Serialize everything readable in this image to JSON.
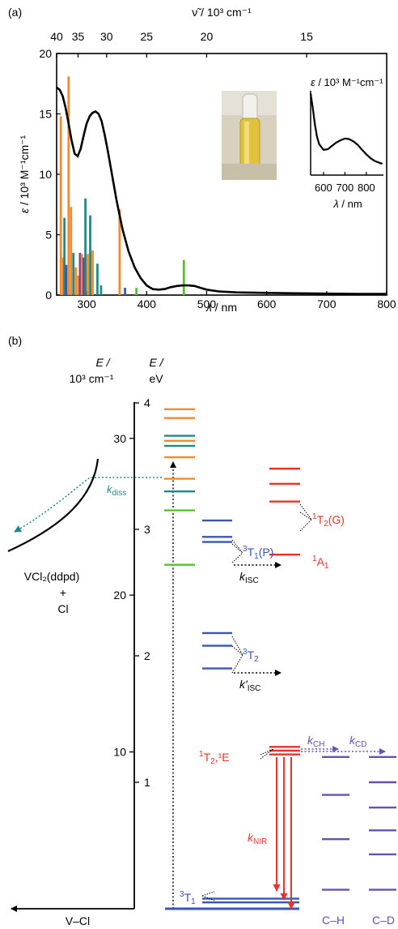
{
  "colors": {
    "axis": "#000000",
    "orange": "#f28a2e",
    "teal": "#1f8a8a",
    "green": "#58c02a",
    "blue": "#3a55b4",
    "red": "#e8322a",
    "purple": "#6a4fb5",
    "violet": "#7a3fa0",
    "photo_bg": "#d9d2c2",
    "vial": "#e3c840"
  },
  "chart_data": [
    {
      "type": "line",
      "panel": "(a)",
      "xlabel_var": "λ",
      "xlabel_unit": " / nm",
      "x_ticks": [
        "300",
        "400",
        "500",
        "600",
        "700",
        "800"
      ],
      "xlim": [
        250,
        800
      ],
      "ylabel_var": "ε",
      "ylabel_unit": "  / 10³ M⁻¹cm⁻¹",
      "y_ticks": [
        "0",
        "5",
        "10",
        "15",
        "20"
      ],
      "ylim": [
        0,
        20
      ],
      "top_axis_label": "ν̃ / 10³ cm⁻¹",
      "top_ticks": [
        "40",
        "35",
        "30",
        "25",
        "20",
        "15"
      ],
      "top_tick_wavenumbers": [
        40,
        35,
        30,
        25,
        20,
        15
      ],
      "absorption_series": {
        "x": [
          250,
          255,
          260,
          265,
          270,
          275,
          280,
          285,
          290,
          295,
          300,
          305,
          310,
          315,
          320,
          325,
          330,
          335,
          340,
          345,
          350,
          360,
          370,
          380,
          390,
          400,
          410,
          420,
          430,
          440,
          450,
          460,
          470,
          480,
          490,
          500,
          520,
          550,
          600,
          650,
          700,
          750,
          800
        ],
        "y": [
          17.2,
          17.0,
          16.5,
          15.5,
          14.2,
          12.8,
          11.7,
          11.5,
          12.1,
          13.2,
          14.2,
          14.8,
          15.1,
          15.2,
          15.0,
          14.4,
          13.3,
          12.0,
          10.6,
          9.2,
          7.8,
          5.4,
          3.6,
          2.3,
          1.4,
          0.8,
          0.5,
          0.45,
          0.5,
          0.65,
          0.75,
          0.8,
          0.8,
          0.75,
          0.6,
          0.45,
          0.3,
          0.22,
          0.18,
          0.15,
          0.12,
          0.1,
          0.1
        ]
      },
      "calculated_transitions": [
        {
          "x": 257,
          "y": 14.8,
          "color": "orange"
        },
        {
          "x": 261,
          "y": 3.1,
          "color": "orange"
        },
        {
          "x": 263,
          "y": 6.4,
          "color": "teal"
        },
        {
          "x": 266,
          "y": 2.5,
          "color": "blue"
        },
        {
          "x": 270,
          "y": 18.1,
          "color": "orange"
        },
        {
          "x": 274,
          "y": 7.3,
          "color": "orange"
        },
        {
          "x": 278,
          "y": 3.5,
          "color": "teal"
        },
        {
          "x": 282,
          "y": 2.3,
          "color": "orange"
        },
        {
          "x": 286,
          "y": 1.6,
          "color": "orange"
        },
        {
          "x": 289,
          "y": 3.5,
          "color": "violet"
        },
        {
          "x": 292,
          "y": 3.4,
          "color": "orange"
        },
        {
          "x": 295,
          "y": 3.1,
          "color": "violet"
        },
        {
          "x": 298,
          "y": 8.0,
          "color": "teal"
        },
        {
          "x": 302,
          "y": 3.4,
          "color": "orange"
        },
        {
          "x": 306,
          "y": 6.6,
          "color": "teal"
        },
        {
          "x": 310,
          "y": 3.7,
          "color": "orange"
        },
        {
          "x": 318,
          "y": 2.6,
          "color": "teal"
        },
        {
          "x": 324,
          "y": 0.8,
          "color": "teal"
        },
        {
          "x": 355,
          "y": 7.1,
          "color": "orange"
        },
        {
          "x": 364,
          "y": 0.6,
          "color": "blue"
        },
        {
          "x": 383,
          "y": 0.6,
          "color": "green"
        },
        {
          "x": 462,
          "y": 2.9,
          "color": "green"
        }
      ],
      "inset": {
        "ylabel_var": "ε",
        "ylabel_unit": "  / 10³ M⁻¹cm⁻¹",
        "xlabel_var": "λ",
        "xlabel_unit": " / nm",
        "x_ticks": [
          "600",
          "700",
          "800"
        ],
        "xlim": [
          540,
          880
        ],
        "ylim": [
          0,
          1.5
        ],
        "series": {
          "x": [
            540,
            550,
            560,
            570,
            580,
            600,
            620,
            640,
            660,
            680,
            700,
            720,
            740,
            760,
            780,
            800,
            820,
            840,
            860,
            875
          ],
          "y": [
            1.45,
            1.2,
            0.9,
            0.68,
            0.55,
            0.45,
            0.46,
            0.52,
            0.58,
            0.62,
            0.65,
            0.64,
            0.6,
            0.54,
            0.45,
            0.37,
            0.3,
            0.25,
            0.22,
            0.2
          ]
        }
      }
    },
    {
      "type": "energy-diagram",
      "panel": "(b)",
      "left_axis_label_line1": "E /",
      "left_axis_label_line2": "10³ cm⁻¹",
      "right_axis_label_line1": "E /",
      "right_axis_label_line2": "eV",
      "cm_ticks": [
        "10",
        "20",
        "30"
      ],
      "cm_tick_values": [
        10,
        20,
        30
      ],
      "ev_ticks": [
        "1",
        "2",
        "3",
        "4"
      ],
      "ev_tick_values": [
        1,
        2,
        3,
        4
      ],
      "bottom_axis_label": "V–Cl",
      "product_label_1": "VCl₂(ddpd)",
      "product_label_2": "+",
      "product_label_3": "Cl",
      "k_diss_main": "k",
      "k_diss_sub": "diss",
      "excitation_levels": [
        {
          "ev": 3.95,
          "color": "orange"
        },
        {
          "ev": 3.88,
          "color": "orange"
        },
        {
          "ev": 3.74,
          "color": "teal"
        },
        {
          "ev": 3.7,
          "color": "orange"
        },
        {
          "ev": 3.66,
          "color": "teal"
        },
        {
          "ev": 3.57,
          "color": "orange"
        },
        {
          "ev": 3.4,
          "color": "orange"
        },
        {
          "ev": 3.3,
          "color": "teal"
        },
        {
          "ev": 3.15,
          "color": "green"
        },
        {
          "ev": 2.72,
          "color": "green"
        }
      ],
      "states": [
        {
          "name": "1T2(G)",
          "label_sup": "1",
          "label_main": "T",
          "label_sub": "2",
          "label_tail": "(G)",
          "color": "red",
          "levels_ev": [
            3.48,
            3.36,
            3.22
          ]
        },
        {
          "name": "1A1",
          "label_sup": "1",
          "label_main": "A",
          "label_sub": "1",
          "label_tail": "",
          "color": "red",
          "levels_ev": [
            2.8
          ]
        },
        {
          "name": "3T1(P)",
          "label_sup": "3",
          "label_main": "T",
          "label_sub": "1",
          "label_tail": "(P)",
          "color": "blue",
          "levels_ev": [
            3.07,
            2.94,
            2.9
          ]
        },
        {
          "name": "3T2",
          "label_sup": "3",
          "label_main": "T",
          "label_sub": "2",
          "label_tail": "",
          "color": "blue",
          "levels_ev": [
            2.18,
            2.08,
            1.9
          ]
        },
        {
          "name": "1T2,1E",
          "label_sup": "1",
          "label_main": "T",
          "label_sub": "2",
          "label_tail": ",¹E",
          "color": "red",
          "levels_ev": [
            1.28,
            1.25,
            1.22
          ]
        },
        {
          "name": "3T1",
          "label_sup": "3",
          "label_main": "T",
          "label_sub": "1",
          "label_tail": "",
          "color": "blue",
          "levels_ev": [
            0.08,
            0.05
          ]
        }
      ],
      "k_isc_main": "k",
      "k_isc_sub": "ISC",
      "k_isc2_main": "k'",
      "k_isc2_sub": "ISC",
      "k_nir_main": "k",
      "k_nir_sub": "NIR",
      "k_ch_main": "k",
      "k_ch_sub": "CH",
      "k_cd_main": "k",
      "k_cd_sub": "CD",
      "ch_label": "C–H",
      "cd_label": "C–D",
      "ch_levels_ev": [
        1.2,
        0.9,
        0.55,
        0.15
      ],
      "cd_levels_ev": [
        1.2,
        1.0,
        0.8,
        0.62,
        0.43,
        0.15
      ]
    }
  ]
}
